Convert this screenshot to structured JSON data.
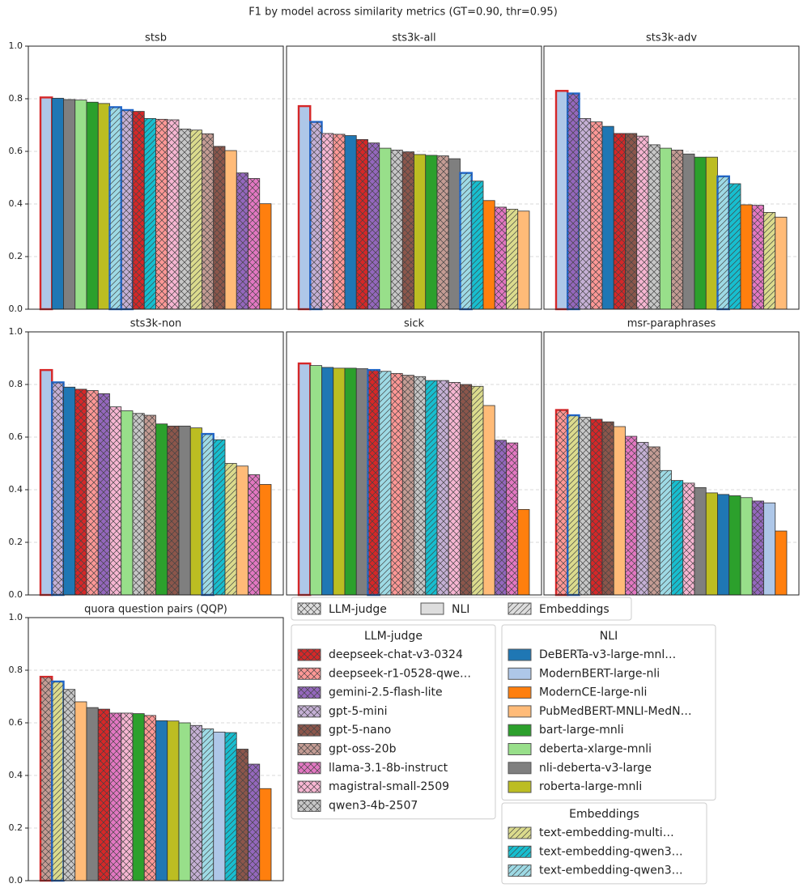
{
  "title": "F1 by model across similarity metrics (GT=0.90, thr=0.95)",
  "chart_data": [
    {
      "type": "bar",
      "title": "stsb",
      "ylim": [
        0,
        1
      ],
      "grid": true,
      "yticks": [
        {
          "value": 0,
          "label": "0.0"
        },
        {
          "value": 0.2,
          "label": "0.2"
        },
        {
          "value": 0.4,
          "label": "0.4"
        },
        {
          "value": 0.6,
          "label": "0.6"
        },
        {
          "value": 0.8,
          "label": "0.8"
        },
        {
          "value": 1,
          "label": "1.0"
        }
      ],
      "values": [
        0.805,
        0.802,
        0.797,
        0.795,
        0.787,
        0.782,
        0.768,
        0.757,
        0.752,
        0.725,
        0.722,
        0.72,
        0.685,
        0.681,
        0.667,
        0.619,
        0.603,
        0.518,
        0.497,
        0.401
      ],
      "colors": [
        "#aec7e8",
        "#1f77b4",
        "#7f7f7f",
        "#98df8a",
        "#2ca02c",
        "#bcbd22",
        "#9edae5",
        "#c5b0d5",
        "#d62728",
        "#17becf",
        "#ff9896",
        "#f7b6d2",
        "#c7c7c7",
        "#dbdb8d",
        "#c49c94",
        "#8c564b",
        "#ffbb78",
        "#9467bd",
        "#e377c2",
        "#ff7f0e"
      ],
      "hatches": [
        null,
        null,
        null,
        null,
        null,
        null,
        "/",
        "x",
        "x",
        "/",
        "x",
        "x",
        "x",
        "/",
        "x",
        "x",
        null,
        "x",
        "x",
        null
      ],
      "edges": [
        "#d62728",
        null,
        null,
        null,
        null,
        null,
        "#1f65c8",
        "#1f65c8",
        null,
        null,
        null,
        null,
        null,
        null,
        null,
        null,
        null,
        null,
        null,
        null
      ]
    },
    {
      "type": "bar",
      "title": "sts3k-all",
      "ylim": [
        0,
        1
      ],
      "grid": true,
      "yticks": [
        {
          "value": 0,
          "label": "0.0"
        },
        {
          "value": 0.2,
          "label": "0.2"
        },
        {
          "value": 0.4,
          "label": "0.4"
        },
        {
          "value": 0.6,
          "label": "0.6"
        },
        {
          "value": 0.8,
          "label": "0.8"
        },
        {
          "value": 1,
          "label": "1.0"
        }
      ],
      "values": [
        0.772,
        0.712,
        0.668,
        0.665,
        0.66,
        0.645,
        0.632,
        0.612,
        0.605,
        0.598,
        0.588,
        0.585,
        0.583,
        0.572,
        0.518,
        0.487,
        0.413,
        0.388,
        0.38,
        0.373
      ],
      "colors": [
        "#aec7e8",
        "#c5b0d5",
        "#f7b6d2",
        "#ff9896",
        "#1f77b4",
        "#d62728",
        "#9467bd",
        "#98df8a",
        "#c7c7c7",
        "#8c564b",
        "#bcbd22",
        "#2ca02c",
        "#c49c94",
        "#7f7f7f",
        "#9edae5",
        "#17becf",
        "#ff7f0e",
        "#e377c2",
        "#dbdb8d",
        "#ffbb78"
      ],
      "hatches": [
        null,
        "x",
        "x",
        "x",
        null,
        "x",
        "x",
        null,
        "x",
        "x",
        null,
        null,
        "x",
        null,
        "/",
        "/",
        null,
        "x",
        "/",
        null
      ],
      "edges": [
        "#d62728",
        "#1f65c8",
        null,
        null,
        null,
        null,
        null,
        null,
        null,
        null,
        null,
        null,
        null,
        null,
        "#1f65c8",
        null,
        null,
        null,
        null,
        null
      ]
    },
    {
      "type": "bar",
      "title": "sts3k-adv",
      "ylim": [
        0,
        1
      ],
      "grid": true,
      "yticks": [
        {
          "value": 0,
          "label": "0.0"
        },
        {
          "value": 0.2,
          "label": "0.2"
        },
        {
          "value": 0.4,
          "label": "0.4"
        },
        {
          "value": 0.6,
          "label": "0.6"
        },
        {
          "value": 0.8,
          "label": "0.8"
        },
        {
          "value": 1,
          "label": "1.0"
        }
      ],
      "values": [
        0.83,
        0.82,
        0.725,
        0.712,
        0.695,
        0.668,
        0.668,
        0.658,
        0.625,
        0.612,
        0.605,
        0.59,
        0.578,
        0.578,
        0.505,
        0.477,
        0.397,
        0.395,
        0.368,
        0.35
      ],
      "colors": [
        "#aec7e8",
        "#9467bd",
        "#c5b0d5",
        "#ff9896",
        "#1f77b4",
        "#d62728",
        "#8c564b",
        "#f7b6d2",
        "#c7c7c7",
        "#98df8a",
        "#c49c94",
        "#7f7f7f",
        "#2ca02c",
        "#bcbd22",
        "#9edae5",
        "#17becf",
        "#ff7f0e",
        "#e377c2",
        "#dbdb8d",
        "#ffbb78"
      ],
      "hatches": [
        null,
        "x",
        "x",
        "x",
        null,
        "x",
        "x",
        "x",
        "x",
        null,
        "x",
        null,
        null,
        null,
        "/",
        "/",
        null,
        "x",
        "/",
        null
      ],
      "edges": [
        "#d62728",
        "#1f65c8",
        null,
        null,
        null,
        null,
        null,
        null,
        null,
        null,
        null,
        null,
        null,
        null,
        "#1f65c8",
        null,
        null,
        null,
        null,
        null
      ]
    },
    {
      "type": "bar",
      "title": "sts3k-non",
      "ylim": [
        0,
        1
      ],
      "grid": true,
      "yticks": [
        {
          "value": 0,
          "label": "0.0"
        },
        {
          "value": 0.2,
          "label": "0.2"
        },
        {
          "value": 0.4,
          "label": "0.4"
        },
        {
          "value": 0.6,
          "label": "0.6"
        },
        {
          "value": 0.8,
          "label": "0.8"
        },
        {
          "value": 1,
          "label": "1.0"
        }
      ],
      "values": [
        0.855,
        0.808,
        0.79,
        0.782,
        0.777,
        0.765,
        0.715,
        0.7,
        0.69,
        0.683,
        0.65,
        0.642,
        0.642,
        0.635,
        0.612,
        0.59,
        0.5,
        0.49,
        0.457,
        0.42
      ],
      "colors": [
        "#aec7e8",
        "#c5b0d5",
        "#1f77b4",
        "#d62728",
        "#ff9896",
        "#9467bd",
        "#f7b6d2",
        "#98df8a",
        "#c7c7c7",
        "#c49c94",
        "#2ca02c",
        "#8c564b",
        "#7f7f7f",
        "#bcbd22",
        "#9edae5",
        "#17becf",
        "#dbdb8d",
        "#ffbb78",
        "#e377c2",
        "#ff7f0e"
      ],
      "hatches": [
        null,
        "x",
        null,
        "x",
        "x",
        "x",
        "x",
        null,
        "x",
        "x",
        null,
        "x",
        null,
        null,
        "/",
        "/",
        "/",
        null,
        "x",
        null
      ],
      "edges": [
        "#d62728",
        "#1f65c8",
        null,
        null,
        null,
        null,
        null,
        null,
        null,
        null,
        null,
        null,
        null,
        null,
        "#1f65c8",
        null,
        null,
        null,
        null,
        null
      ]
    },
    {
      "type": "bar",
      "title": "sick",
      "ylim": [
        0,
        1
      ],
      "grid": true,
      "yticks": [
        {
          "value": 0,
          "label": "0.0"
        },
        {
          "value": 0.2,
          "label": "0.2"
        },
        {
          "value": 0.4,
          "label": "0.4"
        },
        {
          "value": 0.6,
          "label": "0.6"
        },
        {
          "value": 0.8,
          "label": "0.8"
        },
        {
          "value": 1,
          "label": "1.0"
        }
      ],
      "values": [
        0.88,
        0.872,
        0.865,
        0.862,
        0.862,
        0.86,
        0.855,
        0.85,
        0.842,
        0.835,
        0.83,
        0.815,
        0.815,
        0.808,
        0.8,
        0.793,
        0.72,
        0.588,
        0.578,
        0.325
      ],
      "colors": [
        "#aec7e8",
        "#98df8a",
        "#1f77b4",
        "#bcbd22",
        "#2ca02c",
        "#7f7f7f",
        "#d62728",
        "#9edae5",
        "#ff9896",
        "#c49c94",
        "#c7c7c7",
        "#17becf",
        "#c5b0d5",
        "#f7b6d2",
        "#8c564b",
        "#dbdb8d",
        "#ffbb78",
        "#9467bd",
        "#e377c2",
        "#ff7f0e"
      ],
      "hatches": [
        null,
        null,
        null,
        null,
        null,
        null,
        "x",
        "/",
        "x",
        "x",
        "x",
        "/",
        "x",
        "x",
        "x",
        "/",
        null,
        "x",
        "x",
        null
      ],
      "edges": [
        "#d62728",
        null,
        null,
        null,
        null,
        null,
        "#1f65c8",
        null,
        null,
        null,
        null,
        null,
        null,
        null,
        null,
        null,
        null,
        null,
        null,
        null
      ]
    },
    {
      "type": "bar",
      "title": "msr-paraphrases",
      "ylim": [
        0,
        1
      ],
      "grid": true,
      "yticks": [
        {
          "value": 0,
          "label": "0.0"
        },
        {
          "value": 0.2,
          "label": "0.2"
        },
        {
          "value": 0.4,
          "label": "0.4"
        },
        {
          "value": 0.6,
          "label": "0.6"
        },
        {
          "value": 0.8,
          "label": "0.8"
        },
        {
          "value": 1,
          "label": "1.0"
        }
      ],
      "values": [
        0.703,
        0.683,
        0.675,
        0.668,
        0.658,
        0.64,
        0.603,
        0.58,
        0.563,
        0.473,
        0.435,
        0.425,
        0.408,
        0.388,
        0.382,
        0.377,
        0.37,
        0.357,
        0.35,
        0.243
      ],
      "colors": [
        "#ff9896",
        "#dbdb8d",
        "#c7c7c7",
        "#d62728",
        "#8c564b",
        "#ffbb78",
        "#e377c2",
        "#c5b0d5",
        "#c49c94",
        "#9edae5",
        "#17becf",
        "#f7b6d2",
        "#7f7f7f",
        "#bcbd22",
        "#1f77b4",
        "#2ca02c",
        "#98df8a",
        "#9467bd",
        "#aec7e8",
        "#ff7f0e"
      ],
      "hatches": [
        "x",
        "/",
        "x",
        "x",
        "x",
        null,
        "x",
        "x",
        "x",
        "/",
        "/",
        "x",
        null,
        null,
        null,
        null,
        null,
        "x",
        null,
        null
      ],
      "edges": [
        "#d62728",
        "#1f65c8",
        null,
        null,
        null,
        null,
        null,
        null,
        null,
        null,
        null,
        null,
        null,
        null,
        null,
        null,
        null,
        null,
        null,
        null
      ]
    },
    {
      "type": "bar",
      "title": "quora question pairs (QQP)",
      "ylim": [
        0,
        1
      ],
      "grid": true,
      "yticks": [
        {
          "value": 0,
          "label": "0.0"
        },
        {
          "value": 0.2,
          "label": "0.2"
        },
        {
          "value": 0.4,
          "label": "0.4"
        },
        {
          "value": 0.6,
          "label": "0.6"
        },
        {
          "value": 0.8,
          "label": "0.8"
        },
        {
          "value": 1,
          "label": "1.0"
        }
      ],
      "values": [
        0.775,
        0.757,
        0.727,
        0.68,
        0.658,
        0.652,
        0.637,
        0.637,
        0.635,
        0.628,
        0.608,
        0.607,
        0.6,
        0.59,
        0.577,
        0.565,
        0.563,
        0.5,
        0.443,
        0.35
      ],
      "colors": [
        "#c49c94",
        "#dbdb8d",
        "#c7c7c7",
        "#ffbb78",
        "#7f7f7f",
        "#d62728",
        "#e377c2",
        "#f7b6d2",
        "#2ca02c",
        "#ff9896",
        "#1f77b4",
        "#bcbd22",
        "#98df8a",
        "#c5b0d5",
        "#9edae5",
        "#aec7e8",
        "#17becf",
        "#8c564b",
        "#9467bd",
        "#ff7f0e"
      ],
      "hatches": [
        "x",
        "/",
        "x",
        null,
        null,
        "x",
        "x",
        "x",
        null,
        "x",
        null,
        null,
        null,
        "x",
        "/",
        null,
        "/",
        "x",
        "x",
        null
      ],
      "edges": [
        "#d62728",
        "#1f65c8",
        null,
        null,
        null,
        null,
        null,
        null,
        null,
        null,
        null,
        null,
        null,
        null,
        null,
        null,
        null,
        null,
        null,
        null
      ]
    }
  ],
  "legend": {
    "hatch_entries": [
      {
        "name": "LLM-judge",
        "hatch": "x"
      },
      {
        "name": "NLI",
        "hatch": null
      },
      {
        "name": "Embeddings",
        "hatch": "/"
      }
    ],
    "groups": [
      {
        "title": "LLM-judge",
        "hatch": "x",
        "entries": [
          {
            "name": "deepseek-chat-v3-0324",
            "color": "#d62728"
          },
          {
            "name": "deepseek-r1-0528-qwe…",
            "color": "#ff9896"
          },
          {
            "name": "gemini-2.5-flash-lite",
            "color": "#9467bd"
          },
          {
            "name": "gpt-5-mini",
            "color": "#c5b0d5"
          },
          {
            "name": "gpt-5-nano",
            "color": "#8c564b"
          },
          {
            "name": "gpt-oss-20b",
            "color": "#c49c94"
          },
          {
            "name": "llama-3.1-8b-instruct",
            "color": "#e377c2"
          },
          {
            "name": "magistral-small-2509",
            "color": "#f7b6d2"
          },
          {
            "name": "qwen3-4b-2507",
            "color": "#c7c7c7"
          }
        ]
      },
      {
        "title": "NLI",
        "hatch": null,
        "entries": [
          {
            "name": "DeBERTa-v3-large-mnl…",
            "color": "#1f77b4"
          },
          {
            "name": "ModernBERT-large-nli",
            "color": "#aec7e8"
          },
          {
            "name": "ModernCE-large-nli",
            "color": "#ff7f0e"
          },
          {
            "name": "PubMedBERT-MNLI-MedN…",
            "color": "#ffbb78"
          },
          {
            "name": "bart-large-mnli",
            "color": "#2ca02c"
          },
          {
            "name": "deberta-xlarge-mnli",
            "color": "#98df8a"
          },
          {
            "name": "nli-deberta-v3-large",
            "color": "#7f7f7f"
          },
          {
            "name": "roberta-large-mnli",
            "color": "#bcbd22"
          }
        ]
      },
      {
        "title": "Embeddings",
        "hatch": "/",
        "entries": [
          {
            "name": "text-embedding-multi…",
            "color": "#dbdb8d"
          },
          {
            "name": "text-embedding-qwen3…",
            "color": "#17becf"
          },
          {
            "name": "text-embedding-qwen3…",
            "color": "#9edae5"
          }
        ]
      }
    ]
  }
}
